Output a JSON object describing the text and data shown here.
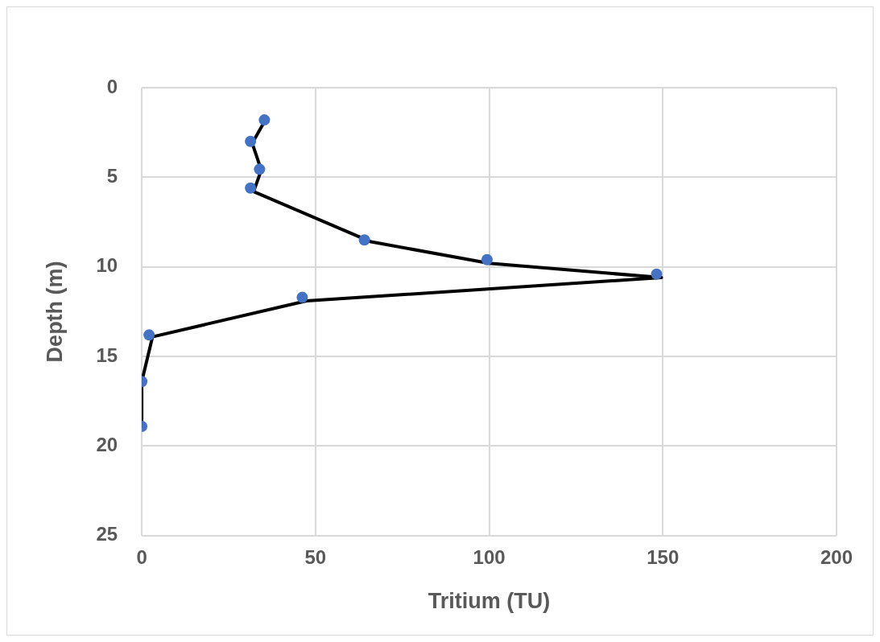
{
  "chart_data": {
    "type": "scatter",
    "xlabel": "Tritium (TU)",
    "ylabel": "Depth (m)",
    "xlim": [
      0,
      200
    ],
    "xticks": [
      0,
      50,
      100,
      150,
      200
    ],
    "ylim": [
      25,
      0
    ],
    "yticks": [
      0,
      5,
      10,
      15,
      20,
      25
    ],
    "grid": true,
    "legend": false,
    "series": [
      {
        "type": "line",
        "color": "#000000",
        "marker": "none",
        "line_style": "solid",
        "x": [
          35.3,
          31.8,
          34.4,
          32.2,
          66,
          100,
          149.6,
          47.4,
          3.1,
          0,
          0
        ],
        "values": [
          1.9,
          3.1,
          4.6,
          5.8,
          8.6,
          9.8,
          10.6,
          11.9,
          13.9,
          16.4,
          18.9
        ]
      },
      {
        "type": "scatter",
        "color": "#4472c4",
        "marker": "circle",
        "x": [
          35.3,
          31.3,
          33.9,
          31.3,
          64.1,
          99.4,
          148.2,
          46.2,
          2.1,
          0,
          0
        ],
        "values": [
          1.8,
          3.0,
          4.55,
          5.6,
          8.5,
          9.6,
          10.4,
          11.7,
          13.8,
          16.4,
          18.9
        ]
      }
    ]
  }
}
